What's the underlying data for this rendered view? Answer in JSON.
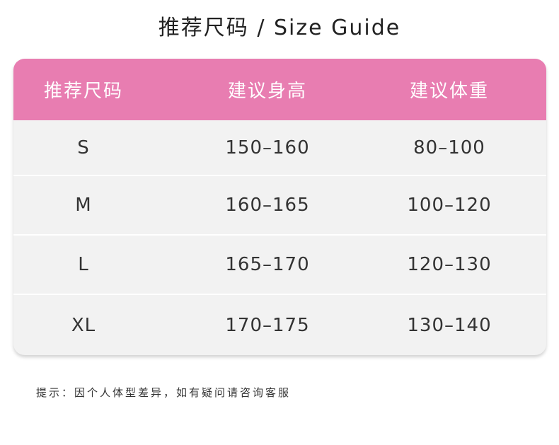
{
  "title": "推荐尺码 / Size Guide",
  "table": {
    "headers": [
      "推荐尺码",
      "建议身高",
      "建议体重"
    ],
    "rows": [
      [
        "S",
        "150–160",
        "80–100"
      ],
      [
        "M",
        "160–165",
        "100–120"
      ],
      [
        "L",
        "165–170",
        "120–130"
      ],
      [
        "XL",
        "170–175",
        "130–140"
      ]
    ]
  },
  "note": "提示：因个人体型差异，如有疑问请咨询客服",
  "colors": {
    "header": "#e87db1",
    "row": "#f2f2f2"
  }
}
